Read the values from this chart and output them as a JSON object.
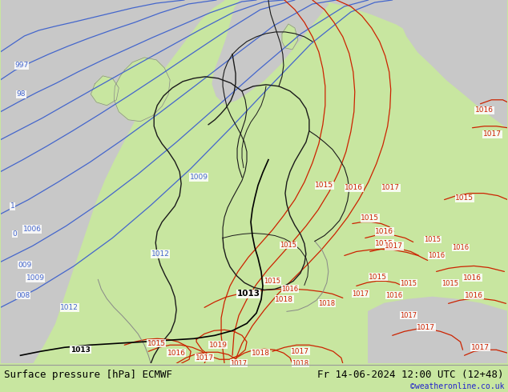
{
  "title_left": "Surface pressure [hPa] ECMWF",
  "title_right": "Fr 14-06-2024 12:00 UTC (12+48)",
  "credit": "©weatheronline.co.uk",
  "sea_color": "#c8c8c8",
  "land_color": "#c8e6a0",
  "mountain_color": "#c8c8c8",
  "border_color": "#1a1a1a",
  "coast_color": "#888888",
  "isobar_blue": "#4466cc",
  "isobar_red": "#cc2200",
  "isobar_black": "#000000",
  "footer_bg": "#c8e6a0",
  "footer_border": "#888888",
  "title_fontsize": 9,
  "credit_color": "#2222cc",
  "credit_fontsize": 7,
  "label_fontsize": 6.5
}
